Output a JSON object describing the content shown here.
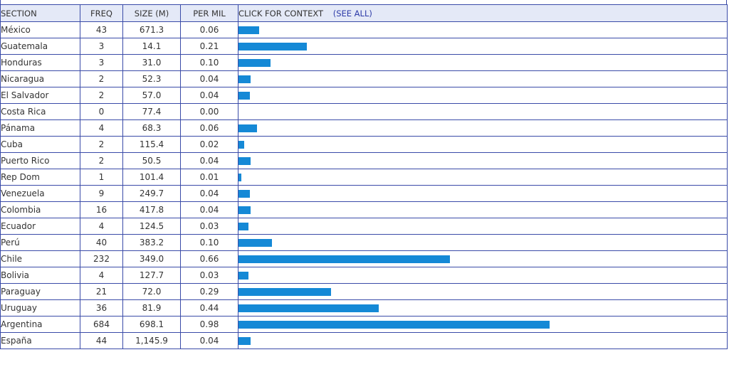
{
  "table": {
    "headers": {
      "section": "SECTION",
      "freq": "FREQ",
      "size": "SIZE (M)",
      "per_mil": "PER MIL",
      "context": "CLICK FOR CONTEXT",
      "see_all": "(SEE ALL)"
    },
    "bar_color": "#1589d6",
    "header_bg": "#e4e9f7",
    "border_color": "#3a4ba8",
    "rows": [
      {
        "section": "México",
        "freq": "43",
        "size": "671.3",
        "per_mil": "0.06",
        "bar": 0.066
      },
      {
        "section": "Guatemala",
        "freq": "3",
        "size": "14.1",
        "per_mil": "0.21",
        "bar": 0.22
      },
      {
        "section": "Honduras",
        "freq": "3",
        "size": "31.0",
        "per_mil": "0.10",
        "bar": 0.102
      },
      {
        "section": "Nicaragua",
        "freq": "2",
        "size": "52.3",
        "per_mil": "0.04",
        "bar": 0.04
      },
      {
        "section": "El Salvador",
        "freq": "2",
        "size": "57.0",
        "per_mil": "0.04",
        "bar": 0.036
      },
      {
        "section": "Costa Rica",
        "freq": "0",
        "size": "77.4",
        "per_mil": "0.00",
        "bar": 0.0
      },
      {
        "section": "Pánama",
        "freq": "4",
        "size": "68.3",
        "per_mil": "0.06",
        "bar": 0.06
      },
      {
        "section": "Cuba",
        "freq": "2",
        "size": "115.4",
        "per_mil": "0.02",
        "bar": 0.018
      },
      {
        "section": "Puerto Rico",
        "freq": "2",
        "size": "50.5",
        "per_mil": "0.04",
        "bar": 0.04
      },
      {
        "section": "Rep Dom",
        "freq": "1",
        "size": "101.4",
        "per_mil": "0.01",
        "bar": 0.01
      },
      {
        "section": "Venezuela",
        "freq": "9",
        "size": "249.7",
        "per_mil": "0.04",
        "bar": 0.036
      },
      {
        "section": "Colombia",
        "freq": "16",
        "size": "417.8",
        "per_mil": "0.04",
        "bar": 0.039
      },
      {
        "section": "Ecuador",
        "freq": "4",
        "size": "124.5",
        "per_mil": "0.03",
        "bar": 0.032
      },
      {
        "section": "Perú",
        "freq": "40",
        "size": "383.2",
        "per_mil": "0.10",
        "bar": 0.107
      },
      {
        "section": "Chile",
        "freq": "232",
        "size": "349.0",
        "per_mil": "0.66",
        "bar": 0.68
      },
      {
        "section": "Bolivia",
        "freq": "4",
        "size": "127.7",
        "per_mil": "0.03",
        "bar": 0.032
      },
      {
        "section": "Paraguay",
        "freq": "21",
        "size": "72.0",
        "per_mil": "0.29",
        "bar": 0.298
      },
      {
        "section": "Uruguay",
        "freq": "36",
        "size": "81.9",
        "per_mil": "0.44",
        "bar": 0.45
      },
      {
        "section": "Argentina",
        "freq": "684",
        "size": "698.1",
        "per_mil": "0.98",
        "bar": 1.0
      },
      {
        "section": "España",
        "freq": "44",
        "size": "1,145.9",
        "per_mil": "0.04",
        "bar": 0.04
      }
    ]
  }
}
